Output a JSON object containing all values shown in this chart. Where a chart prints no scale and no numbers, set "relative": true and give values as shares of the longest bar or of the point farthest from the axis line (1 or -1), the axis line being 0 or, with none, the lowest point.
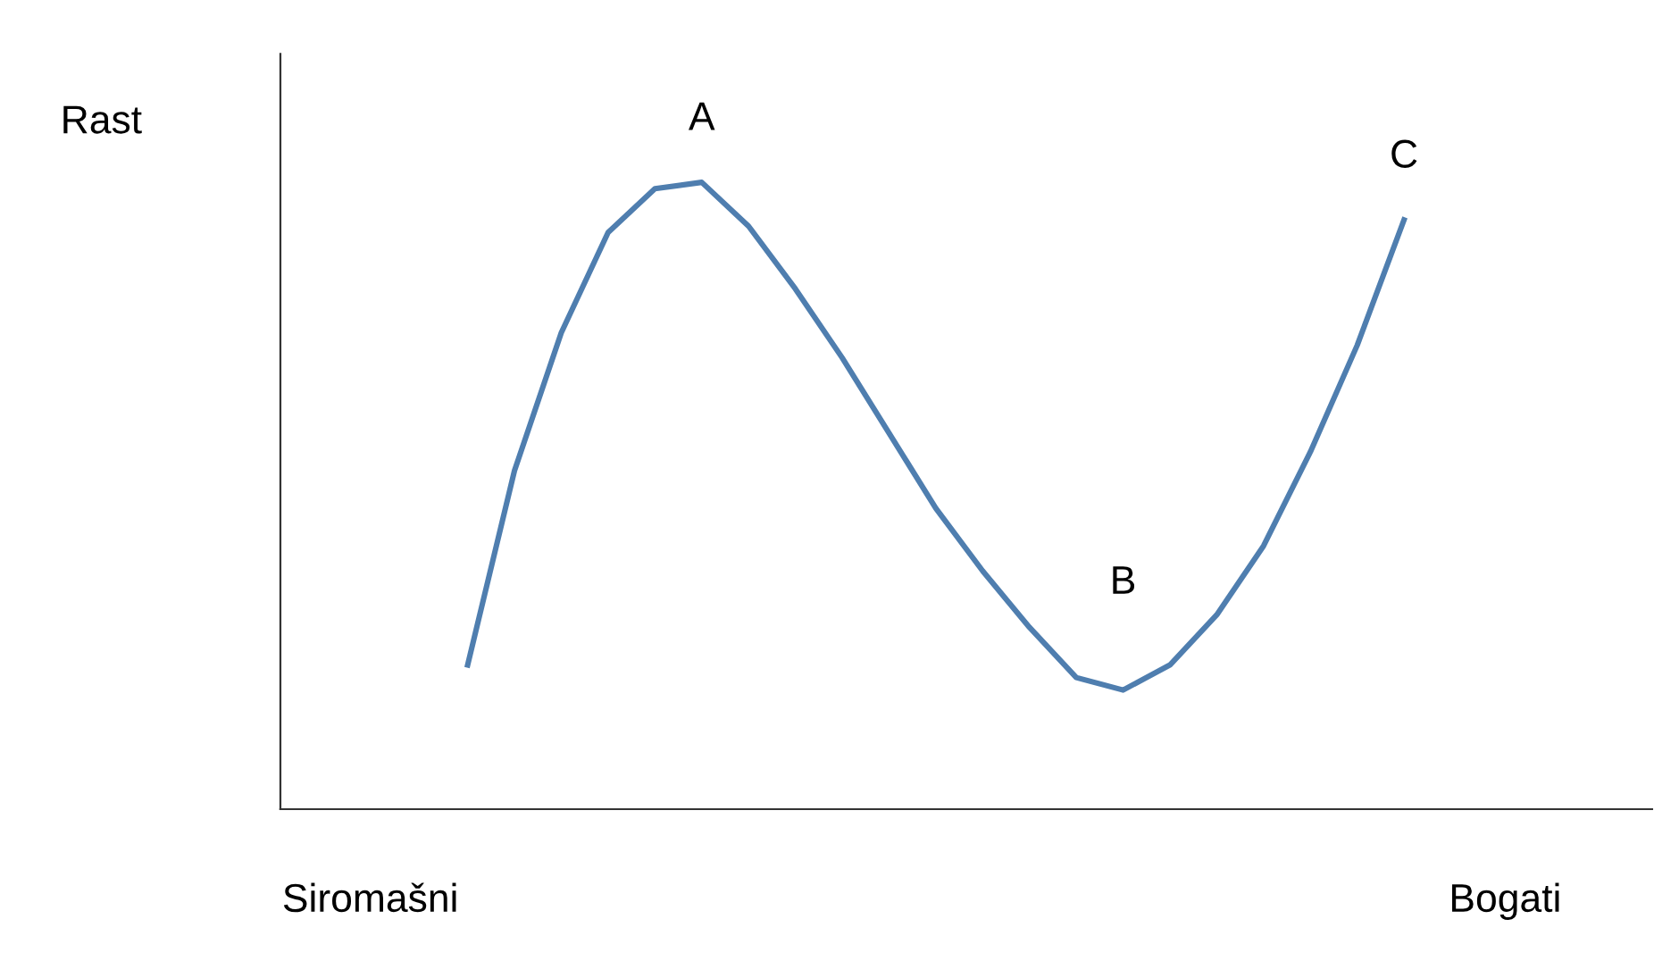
{
  "chart_data": {
    "type": "line",
    "relative": true,
    "categories": [
      null,
      null,
      null,
      null,
      null,
      null,
      null,
      null,
      null,
      null,
      null,
      null,
      null,
      null,
      null,
      null,
      null,
      null,
      null,
      null,
      null
    ],
    "series": [
      {
        "color": "#4f7eaf",
        "values": [
          0.23,
          0.54,
          0.76,
          0.92,
          0.99,
          1.0,
          0.93,
          0.83,
          0.72,
          0.6,
          0.48,
          0.38,
          0.29,
          0.21,
          0.19,
          0.23,
          0.31,
          0.42,
          0.57,
          0.74,
          0.94
        ]
      }
    ],
    "annotations": [
      "Rast",
      "A",
      "B",
      "C",
      "Siromašni",
      "Bogati"
    ],
    "legend": false,
    "marker": "none",
    "line_style": "solid"
  }
}
